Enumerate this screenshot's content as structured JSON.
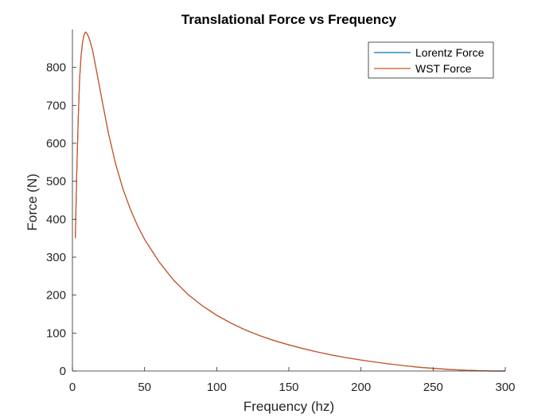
{
  "chart_data": {
    "type": "line",
    "title": "Translational Force vs Frequency",
    "xlabel": "Frequency (hz)",
    "ylabel": "Force (N)",
    "xlim": [
      0,
      300
    ],
    "ylim": [
      0,
      900
    ],
    "xticks": [
      0,
      50,
      100,
      150,
      200,
      250,
      300
    ],
    "yticks": [
      0,
      100,
      200,
      300,
      400,
      500,
      600,
      700,
      800
    ],
    "grid": false,
    "legend_position": "top-right",
    "series": [
      {
        "name": "Lorentz Force",
        "color": "#0072BD",
        "x": [
          2,
          3,
          4,
          5,
          6,
          7,
          8,
          9,
          10,
          11,
          12,
          14,
          16,
          18,
          20,
          25,
          30,
          35,
          40,
          45,
          50,
          60,
          70,
          80,
          90,
          100,
          110,
          120,
          130,
          140,
          150,
          160,
          170,
          180,
          190,
          200,
          210,
          220,
          230,
          240,
          250,
          260,
          270,
          280,
          290,
          300
        ],
        "y": [
          350,
          520,
          660,
          770,
          830,
          865,
          885,
          893,
          890,
          882,
          872,
          845,
          805,
          765,
          724,
          626,
          545,
          480,
          428,
          384,
          347,
          288,
          240,
          202,
          172,
          147,
          126,
          108,
          93,
          80,
          69,
          59,
          50,
          42,
          35,
          29,
          23.5,
          18.5,
          14,
          10,
          7,
          4.5,
          2.5,
          1,
          0,
          0
        ]
      },
      {
        "name": "WST Force",
        "color": "#D95319",
        "x": [
          2,
          3,
          4,
          5,
          6,
          7,
          8,
          9,
          10,
          11,
          12,
          14,
          16,
          18,
          20,
          25,
          30,
          35,
          40,
          45,
          50,
          60,
          70,
          80,
          90,
          100,
          110,
          120,
          130,
          140,
          150,
          160,
          170,
          180,
          190,
          200,
          210,
          220,
          230,
          240,
          250,
          260,
          270,
          280,
          290,
          300
        ],
        "y": [
          350,
          520,
          660,
          770,
          830,
          865,
          885,
          893,
          890,
          882,
          872,
          845,
          805,
          765,
          724,
          626,
          545,
          480,
          428,
          384,
          347,
          288,
          240,
          202,
          172,
          147,
          126,
          108,
          93,
          80,
          69,
          59,
          50,
          42,
          35,
          29,
          23.5,
          18.5,
          14,
          10,
          7,
          4.5,
          2.5,
          1,
          0,
          0
        ]
      }
    ]
  }
}
